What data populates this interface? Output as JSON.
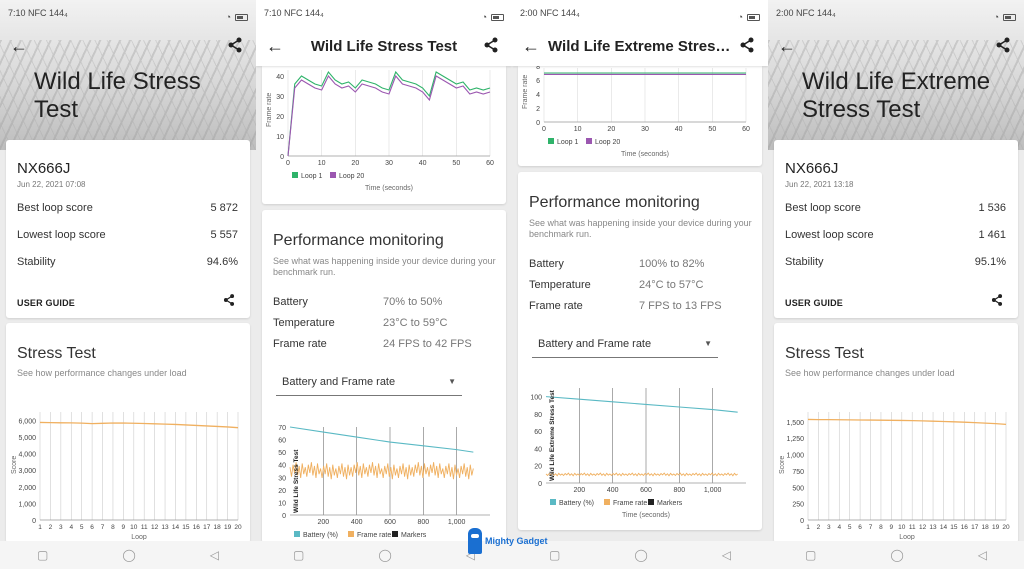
{
  "watermark": {
    "text": "Mighty Gadget"
  },
  "colors": {
    "frame": "#f0b060",
    "battery": "#5ab9c4",
    "loop1": "#2fb36a",
    "loop20": "#9b57b0"
  },
  "phones": [
    {
      "status_time": "7:10 NFC 144₄",
      "back_icon": "back-arrow-icon",
      "title": "Wild Life Stress Test",
      "device": "NX666J",
      "date": "Jun 22, 2021 07:08",
      "rows": [
        {
          "label": "Best loop score",
          "value": "5 872"
        },
        {
          "label": "Lowest loop score",
          "value": "5 557"
        },
        {
          "label": "Stability",
          "value": "94.6%"
        }
      ],
      "user_guide": "USER GUIDE",
      "stress_title": "Stress Test",
      "stress_sub": "See how performance changes under load",
      "chart_y_label": "Score",
      "chart_x_label": "Loop",
      "y_ticks": [
        "6,000",
        "5,000",
        "4,000",
        "3,000",
        "2,000",
        "1,000",
        "0"
      ],
      "x_ticks": [
        "1",
        "2",
        "3",
        "4",
        "5",
        "6",
        "7",
        "8",
        "9",
        "10",
        "11",
        "12",
        "13",
        "14",
        "15",
        "16",
        "17",
        "18",
        "19",
        "20"
      ]
    },
    {
      "status_time": "7:10 NFC 144₄",
      "title": "Wild Life Stress Test",
      "y_label": "Frame rate",
      "y_ticks": [
        "40",
        "30",
        "20",
        "10",
        "0"
      ],
      "x_ticks": [
        "0",
        "10",
        "20",
        "30",
        "40",
        "50",
        "60"
      ],
      "x_label": "Time (seconds)",
      "legend": [
        "Loop 1",
        "Loop 20"
      ],
      "perf_title": "Performance monitoring",
      "perf_sub": "See what was happening inside your device during your benchmark run.",
      "stats": [
        {
          "label": "Battery",
          "value": "70% to 50%"
        },
        {
          "label": "Temperature",
          "value": "23°C to 59°C"
        },
        {
          "label": "Frame rate",
          "value": "24 FPS to 42 FPS"
        }
      ],
      "dropdown": "Battery and Frame rate",
      "chart2_y_label": "Wild Life Stress Test",
      "chart2_y_ticks": [
        "70",
        "60",
        "50",
        "40",
        "30",
        "20",
        "10",
        "0"
      ],
      "chart2_x_ticks": [
        "200",
        "400",
        "600",
        "800",
        "1,000"
      ],
      "legend2": [
        "Battery (%)",
        "Frame rate",
        "Markers"
      ]
    },
    {
      "status_time": "2:00 NFC 144₄",
      "title": "Wild Life Extreme Stress...",
      "y_label": "Frame rate",
      "y_ticks": [
        "8",
        "6",
        "4",
        "2",
        "0"
      ],
      "x_ticks": [
        "0",
        "10",
        "20",
        "30",
        "40",
        "50",
        "60"
      ],
      "x_label": "Time (seconds)",
      "legend": [
        "Loop 1",
        "Loop 20"
      ],
      "perf_title": "Performance monitoring",
      "perf_sub": "See what was happening inside your device during your benchmark run.",
      "stats": [
        {
          "label": "Battery",
          "value": "100% to 82%"
        },
        {
          "label": "Temperature",
          "value": "24°C to 57°C"
        },
        {
          "label": "Frame rate",
          "value": "7 FPS to 13 FPS"
        }
      ],
      "dropdown": "Battery and Frame rate",
      "chart2_y_label": "Wild Life Extreme Stress Test",
      "chart2_y_ticks": [
        "100",
        "80",
        "60",
        "40",
        "20",
        "0"
      ],
      "chart2_x_ticks": [
        "200",
        "400",
        "600",
        "800",
        "1,000"
      ],
      "chart2_x_label": "Time (seconds)",
      "legend2": [
        "Battery (%)",
        "Frame rate",
        "Markers"
      ]
    },
    {
      "status_time": "2:00 NFC 144₄",
      "title": "Wild Life Extreme Stress Test",
      "device": "NX666J",
      "date": "Jun 22, 2021 13:18",
      "rows": [
        {
          "label": "Best loop score",
          "value": "1 536"
        },
        {
          "label": "Lowest loop score",
          "value": "1 461"
        },
        {
          "label": "Stability",
          "value": "95.1%"
        }
      ],
      "user_guide": "USER GUIDE",
      "stress_title": "Stress Test",
      "stress_sub": "See how performance changes under load",
      "chart_y_label": "Score",
      "chart_x_label": "Loop",
      "y_ticks": [
        "1,500",
        "1,250",
        "1,000",
        "750",
        "500",
        "250",
        "0"
      ],
      "x_ticks": [
        "1",
        "2",
        "3",
        "4",
        "5",
        "6",
        "7",
        "8",
        "9",
        "10",
        "11",
        "12",
        "13",
        "14",
        "15",
        "16",
        "17",
        "18",
        "19",
        "20"
      ]
    }
  ],
  "chart_data": [
    {
      "type": "line",
      "x": [
        1,
        2,
        3,
        4,
        5,
        6,
        7,
        8,
        9,
        10,
        11,
        12,
        13,
        14,
        15,
        16,
        17,
        18,
        19,
        20
      ],
      "series": [
        {
          "values": [
            5872,
            5860,
            5850,
            5845,
            5830,
            5800,
            5820,
            5840,
            5835,
            5825,
            5810,
            5790,
            5770,
            5750,
            5720,
            5690,
            5660,
            5630,
            5600,
            5557
          ]
        }
      ],
      "xlabel": "Loop",
      "ylabel": "Score",
      "ylim": [
        0,
        6500
      ]
    },
    {
      "type": "line",
      "x": [
        0,
        2,
        4,
        6,
        8,
        10,
        12,
        14,
        16,
        18,
        20,
        22,
        24,
        26,
        28,
        30,
        32,
        34,
        36,
        38,
        40,
        42,
        44,
        46,
        48,
        50,
        52,
        54,
        56,
        58,
        60
      ],
      "series": [
        {
          "name": "Loop 1",
          "values": [
            0,
            36,
            40,
            38,
            36,
            35,
            42,
            38,
            36,
            37,
            34,
            38,
            37,
            36,
            34,
            33,
            42,
            38,
            37,
            36,
            34,
            30,
            42,
            40,
            38,
            36,
            37,
            33,
            34,
            33,
            34
          ]
        },
        {
          "name": "Loop 20",
          "values": [
            0,
            34,
            38,
            36,
            34,
            33,
            40,
            36,
            34,
            35,
            32,
            36,
            35,
            34,
            32,
            31,
            40,
            36,
            35,
            34,
            32,
            28,
            40,
            38,
            36,
            34,
            35,
            31,
            32,
            31,
            32
          ]
        }
      ],
      "xlabel": "Time (seconds)",
      "ylabel": "Frame rate",
      "ylim": [
        0,
        45
      ]
    },
    {
      "type": "line",
      "x": [
        0,
        200,
        400,
        600,
        800,
        1000,
        1100
      ],
      "series": [
        {
          "name": "Battery (%)",
          "values": [
            70,
            66,
            62,
            58,
            55,
            52,
            50
          ]
        },
        {
          "name": "Frame rate",
          "values": [
            36,
            35,
            36,
            35,
            36,
            35,
            35
          ]
        }
      ],
      "ylabel": "Wild Life Stress Test",
      "ylim": [
        0,
        70
      ]
    },
    {
      "type": "line",
      "x": [
        0,
        10,
        20,
        30,
        40,
        50,
        60
      ],
      "series": [
        {
          "name": "Loop 1",
          "values": [
            7,
            7,
            7,
            7,
            7,
            7,
            7
          ]
        },
        {
          "name": "Loop 20",
          "values": [
            6.8,
            6.8,
            6.8,
            6.8,
            6.8,
            6.8,
            6.8
          ]
        }
      ],
      "xlabel": "Time (seconds)",
      "ylabel": "Frame rate",
      "ylim": [
        0,
        8
      ]
    },
    {
      "type": "line",
      "x": [
        0,
        200,
        400,
        600,
        800,
        1000,
        1150
      ],
      "series": [
        {
          "name": "Battery (%)",
          "values": [
            100,
            97,
            94,
            91,
            88,
            85,
            82
          ]
        },
        {
          "name": "Frame rate",
          "values": [
            10,
            10,
            10,
            10,
            10,
            10,
            10
          ]
        }
      ],
      "xlabel": "Time (seconds)",
      "ylabel": "Wild Life Extreme Stress Test",
      "ylim": [
        0,
        110
      ]
    },
    {
      "type": "line",
      "x": [
        1,
        2,
        3,
        4,
        5,
        6,
        7,
        8,
        9,
        10,
        11,
        12,
        13,
        14,
        15,
        16,
        17,
        18,
        19,
        20
      ],
      "series": [
        {
          "values": [
            1536,
            1534,
            1533,
            1532,
            1530,
            1528,
            1527,
            1525,
            1523,
            1521,
            1518,
            1514,
            1510,
            1505,
            1500,
            1494,
            1488,
            1480,
            1472,
            1461
          ]
        }
      ],
      "xlabel": "Loop",
      "ylabel": "Score",
      "ylim": [
        0,
        1650
      ]
    }
  ]
}
